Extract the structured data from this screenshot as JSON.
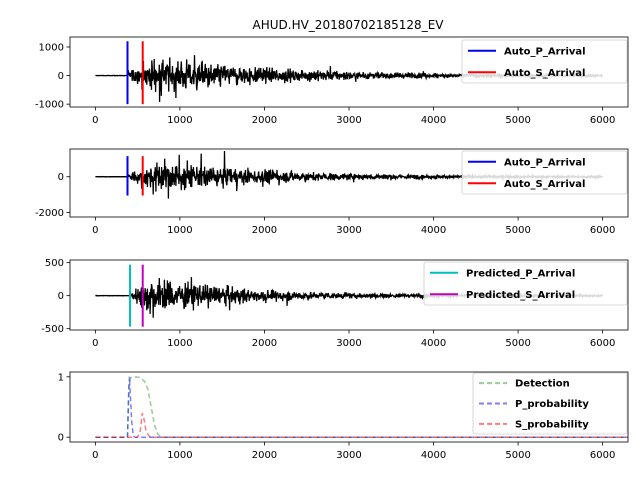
{
  "chart_data": {
    "title": "AHUD.HV_20180702185128_EV",
    "x_ticks": [
      0,
      1000,
      2000,
      3000,
      4000,
      5000,
      6000
    ],
    "x_range": [
      -300,
      6300
    ],
    "panels": [
      {
        "type": "line",
        "y_ticks": [
          -1000,
          0,
          1000
        ],
        "y_range": [
          -1100,
          1350
        ],
        "trace": {
          "start": 0,
          "end": 6000,
          "onset": 380,
          "amplitude": 1000,
          "peak_at": 750,
          "decay": 0.00075,
          "color": "#000000"
        },
        "vlines": [
          {
            "name": "Auto_P_Arrival",
            "x": 380,
            "y0": -1000,
            "y1": 1200,
            "color": "#0000ff"
          },
          {
            "name": "Auto_S_Arrival",
            "x": 560,
            "y0": -1000,
            "y1": 1200,
            "color": "#ff0000"
          }
        ],
        "legend": [
          "Auto_P_Arrival",
          "Auto_S_Arrival"
        ],
        "legend_location": "top-right"
      },
      {
        "type": "line",
        "y_ticks": [
          -2000,
          0
        ],
        "y_range": [
          -2250,
          1550
        ],
        "trace": {
          "start": 0,
          "end": 6000,
          "onset": 380,
          "amplitude": 1400,
          "peak_at": 780,
          "decay": 0.0008,
          "color": "#000000"
        },
        "vlines": [
          {
            "name": "Auto_P_Arrival",
            "x": 380,
            "y0": -1050,
            "y1": 1150,
            "color": "#0000ff"
          },
          {
            "name": "Auto_S_Arrival",
            "x": 560,
            "y0": -1050,
            "y1": 1150,
            "color": "#ff0000"
          }
        ],
        "legend": [
          "Auto_P_Arrival",
          "Auto_S_Arrival"
        ],
        "legend_location": "top-right"
      },
      {
        "type": "line",
        "y_ticks": [
          -500,
          0,
          500
        ],
        "y_range": [
          -520,
          540
        ],
        "trace": {
          "start": 0,
          "end": 6000,
          "onset": 400,
          "amplitude": 420,
          "peak_at": 650,
          "decay": 0.0009,
          "color": "#000000"
        },
        "vlines": [
          {
            "name": "Predicted_P_Arrival",
            "x": 410,
            "y0": -470,
            "y1": 470,
            "color": "#00bfbf"
          },
          {
            "name": "Predicted_S_Arrival",
            "x": 560,
            "y0": -470,
            "y1": 470,
            "color": "#bf00bf"
          }
        ],
        "legend": [
          "Predicted_P_Arrival",
          "Predicted_S_Arrival"
        ],
        "legend_location": "top-right"
      },
      {
        "type": "line",
        "y_ticks": [
          0,
          1
        ],
        "y_range": [
          -0.08,
          1.08
        ],
        "curves": [
          {
            "name": "Detection",
            "color": "#2ca02c",
            "points": [
              [
                0,
                0
              ],
              [
                380,
                0
              ],
              [
                395,
                0.85
              ],
              [
                420,
                0.99
              ],
              [
                460,
                1.0
              ],
              [
                520,
                0.99
              ],
              [
                580,
                0.93
              ],
              [
                620,
                0.8
              ],
              [
                660,
                0.5
              ],
              [
                700,
                0.2
              ],
              [
                740,
                0.05
              ],
              [
                780,
                0
              ],
              [
                6300,
                0
              ]
            ]
          },
          {
            "name": "P_probability",
            "color": "#0000ff",
            "points": [
              [
                0,
                0
              ],
              [
                380,
                0
              ],
              [
                392,
                0.6
              ],
              [
                402,
                1.0
              ],
              [
                415,
                0.7
              ],
              [
                430,
                0.25
              ],
              [
                450,
                0.02
              ],
              [
                470,
                0
              ],
              [
                6300,
                0
              ]
            ]
          },
          {
            "name": "S_probability",
            "color": "#ff0000",
            "points": [
              [
                0,
                0
              ],
              [
                500,
                0
              ],
              [
                530,
                0.1
              ],
              [
                555,
                0.4
              ],
              [
                575,
                0.3
              ],
              [
                600,
                0.1
              ],
              [
                640,
                0.01
              ],
              [
                680,
                0
              ],
              [
                6300,
                0
              ]
            ]
          }
        ],
        "legend": [
          "Detection",
          "P_probability",
          "S_probability"
        ],
        "legend_location": "top-right"
      }
    ]
  }
}
